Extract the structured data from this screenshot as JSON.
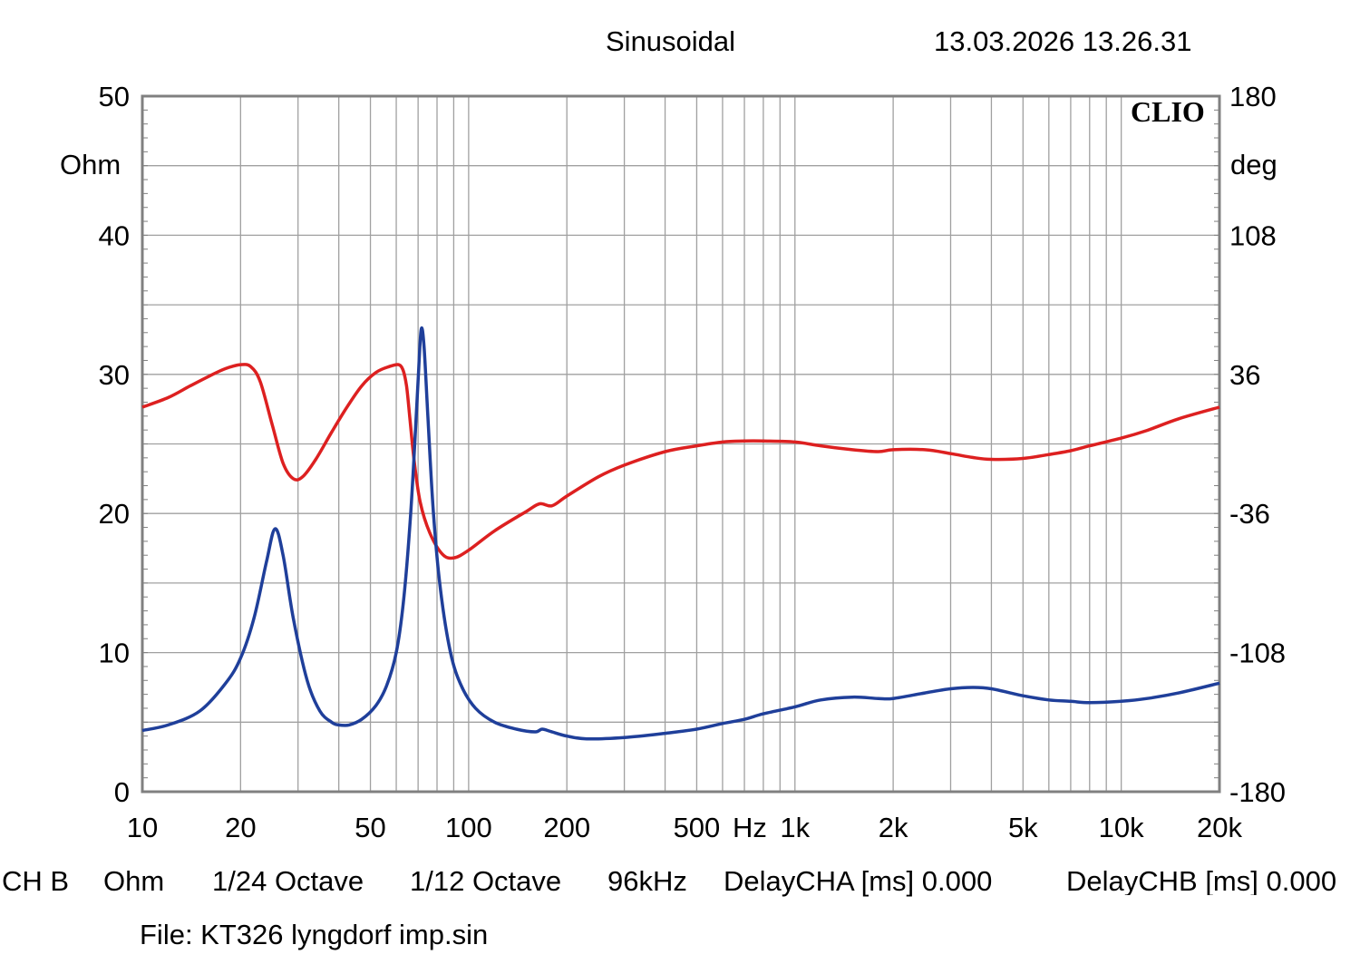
{
  "header": {
    "mode": "Sinusoidal",
    "timestamp": "13.03.2026 13.26.31",
    "brand": "CLIO"
  },
  "footer": {
    "items": [
      "CH B",
      "Ohm",
      "1/24 Octave",
      "1/12 Octave",
      "96kHz",
      "DelayCHA [ms] 0.000",
      "DelayCHB [ms] 0.000"
    ],
    "file": "File: KT326 lyngdorf imp.sin"
  },
  "colors": {
    "grid": "#a0a0a0",
    "frame": "#808080",
    "magnitude": "#1f3f9a",
    "phase": "#dd2020"
  },
  "chart_data": {
    "type": "line",
    "x_scale": "log",
    "xlim": [
      10,
      20000
    ],
    "x_tick_labels": [
      {
        "x": 10,
        "label": "10"
      },
      {
        "x": 20,
        "label": "20"
      },
      {
        "x": 50,
        "label": "50"
      },
      {
        "x": 100,
        "label": "100"
      },
      {
        "x": 200,
        "label": "200"
      },
      {
        "x": 500,
        "label": "500"
      },
      {
        "x": 1000,
        "label": "1k"
      },
      {
        "x": 2000,
        "label": "2k"
      },
      {
        "x": 5000,
        "label": "5k"
      },
      {
        "x": 10000,
        "label": "10k"
      },
      {
        "x": 20000,
        "label": "20k"
      }
    ],
    "x_unit_label": "Hz",
    "y_left": {
      "unit": "Ohm",
      "ylim": [
        0,
        50
      ],
      "ticks": [
        0,
        10,
        20,
        30,
        40,
        50
      ]
    },
    "y_right": {
      "unit": "deg",
      "ylim": [
        -180,
        180
      ],
      "ticks": [
        -180,
        -108,
        -36,
        36,
        108,
        180
      ]
    },
    "grid": true,
    "series": [
      {
        "axis": "left",
        "color": "magnitude",
        "points": [
          [
            10,
            4.4
          ],
          [
            12,
            4.8
          ],
          [
            15,
            5.8
          ],
          [
            18,
            7.8
          ],
          [
            20,
            9.6
          ],
          [
            22,
            12.5
          ],
          [
            24,
            16.5
          ],
          [
            25.5,
            18.9
          ],
          [
            27,
            17
          ],
          [
            29,
            12.5
          ],
          [
            32,
            8
          ],
          [
            35,
            5.8
          ],
          [
            38,
            5
          ],
          [
            40,
            4.8
          ],
          [
            43,
            4.8
          ],
          [
            47,
            5.2
          ],
          [
            52,
            6.2
          ],
          [
            56,
            7.6
          ],
          [
            60,
            10
          ],
          [
            63,
            13.5
          ],
          [
            66,
            19
          ],
          [
            68,
            24
          ],
          [
            70,
            29.5
          ],
          [
            71.5,
            33.2
          ],
          [
            73,
            32
          ],
          [
            75,
            27
          ],
          [
            78,
            20
          ],
          [
            82,
            14.5
          ],
          [
            88,
            10
          ],
          [
            95,
            7.6
          ],
          [
            105,
            6
          ],
          [
            120,
            5
          ],
          [
            140,
            4.5
          ],
          [
            160,
            4.3
          ],
          [
            168,
            4.5
          ],
          [
            180,
            4.3
          ],
          [
            200,
            4
          ],
          [
            230,
            3.8
          ],
          [
            300,
            3.9
          ],
          [
            400,
            4.2
          ],
          [
            500,
            4.5
          ],
          [
            600,
            4.9
          ],
          [
            700,
            5.2
          ],
          [
            800,
            5.6
          ],
          [
            1000,
            6.1
          ],
          [
            1200,
            6.6
          ],
          [
            1500,
            6.8
          ],
          [
            1800,
            6.7
          ],
          [
            2000,
            6.7
          ],
          [
            2500,
            7.1
          ],
          [
            3000,
            7.4
          ],
          [
            3500,
            7.5
          ],
          [
            4000,
            7.4
          ],
          [
            5000,
            6.9
          ],
          [
            6000,
            6.6
          ],
          [
            7000,
            6.5
          ],
          [
            8000,
            6.4
          ],
          [
            10000,
            6.5
          ],
          [
            12000,
            6.7
          ],
          [
            15000,
            7.1
          ],
          [
            20000,
            7.8
          ]
        ]
      },
      {
        "axis": "right",
        "color": "phase",
        "points": [
          [
            10,
            19
          ],
          [
            12,
            24
          ],
          [
            14,
            30
          ],
          [
            16,
            35
          ],
          [
            18,
            39
          ],
          [
            20,
            41
          ],
          [
            21.5,
            40
          ],
          [
            23,
            32
          ],
          [
            25,
            10
          ],
          [
            27,
            -10
          ],
          [
            29,
            -18
          ],
          [
            31,
            -17
          ],
          [
            34,
            -8
          ],
          [
            38,
            6
          ],
          [
            42,
            18
          ],
          [
            47,
            30
          ],
          [
            52,
            37
          ],
          [
            57,
            40
          ],
          [
            61,
            41
          ],
          [
            63,
            38
          ],
          [
            64.5,
            30
          ],
          [
            66,
            14
          ],
          [
            68,
            -8
          ],
          [
            71,
            -30
          ],
          [
            76,
            -46
          ],
          [
            83,
            -57
          ],
          [
            90,
            -59
          ],
          [
            100,
            -55
          ],
          [
            120,
            -45
          ],
          [
            150,
            -35
          ],
          [
            165,
            -31
          ],
          [
            180,
            -32
          ],
          [
            200,
            -27
          ],
          [
            250,
            -17
          ],
          [
            300,
            -11
          ],
          [
            400,
            -4
          ],
          [
            500,
            -1
          ],
          [
            600,
            1
          ],
          [
            700,
            1.5
          ],
          [
            800,
            1.5
          ],
          [
            1000,
            1
          ],
          [
            1200,
            -1
          ],
          [
            1500,
            -3
          ],
          [
            1800,
            -4
          ],
          [
            2000,
            -3
          ],
          [
            2500,
            -3
          ],
          [
            3000,
            -5
          ],
          [
            3500,
            -7
          ],
          [
            4000,
            -8
          ],
          [
            5000,
            -7.5
          ],
          [
            6000,
            -5.5
          ],
          [
            7000,
            -3.5
          ],
          [
            8000,
            -1
          ],
          [
            10000,
            3
          ],
          [
            12000,
            7
          ],
          [
            15000,
            13
          ],
          [
            20000,
            19
          ]
        ]
      }
    ]
  }
}
